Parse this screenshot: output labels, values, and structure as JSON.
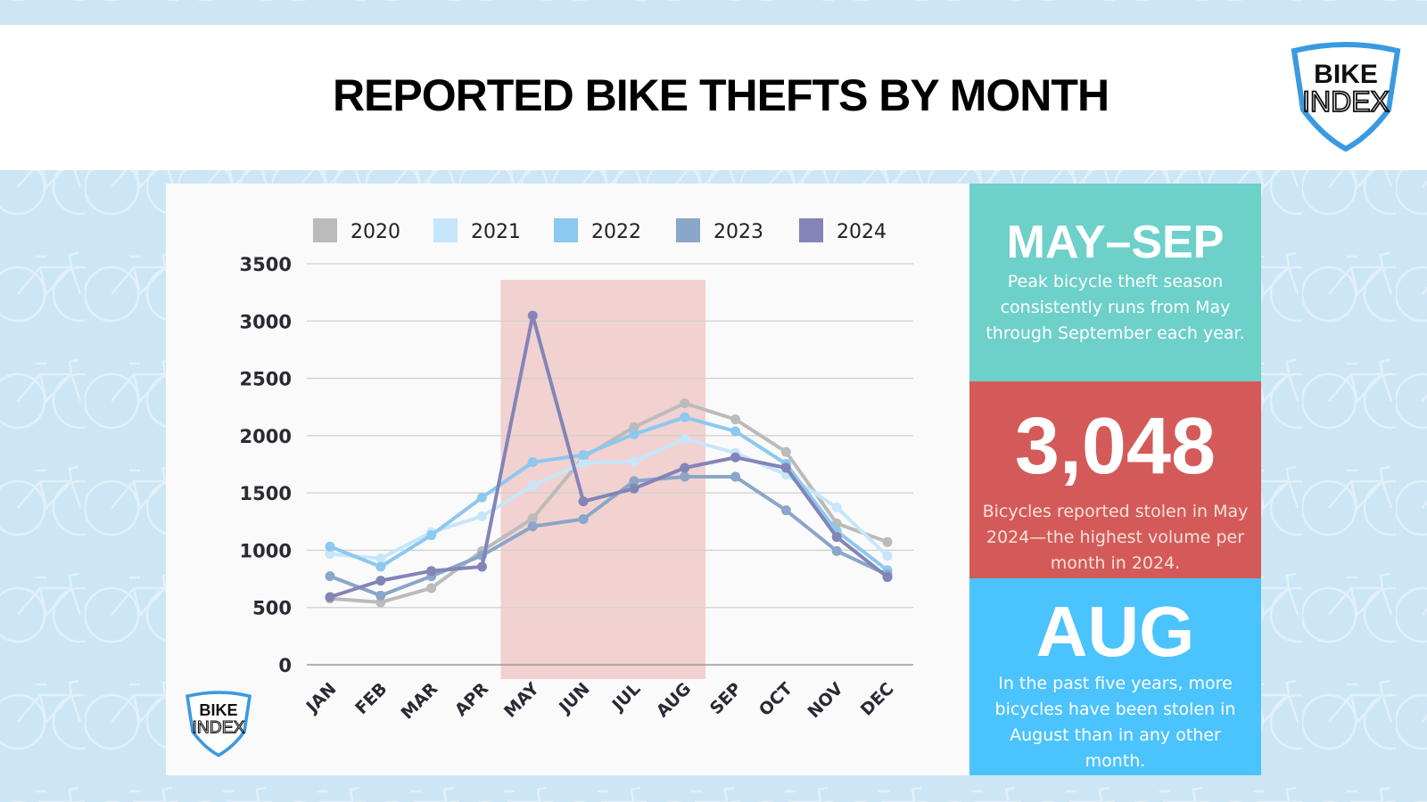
{
  "header": {
    "title": "REPORTED BIKE THEFTS BY MONTH",
    "logo_text": [
      "BIKE",
      "INDEX"
    ]
  },
  "colors": {
    "background": "#cde6f6",
    "highlight": "#f1d2d0",
    "panel_teal": "#6dd0c9",
    "panel_red": "#d45a5a",
    "panel_blue": "#4bc3fc",
    "logo_shield": "#3a9ae0"
  },
  "chart_data": {
    "type": "line",
    "title": "",
    "xlabel": "",
    "ylabel": "",
    "categories": [
      "JAN",
      "FEB",
      "MAR",
      "APR",
      "MAY",
      "JUN",
      "JUL",
      "AUG",
      "SEP",
      "OCT",
      "NOV",
      "DEC"
    ],
    "ylim": [
      0,
      3500
    ],
    "yticks": [
      "0",
      "500",
      "1000",
      "1500",
      "2000",
      "2500",
      "3000",
      "3500"
    ],
    "grid": true,
    "legend_position": "top",
    "highlight_range": [
      "MAY",
      "AUG"
    ],
    "series": [
      {
        "name": "2020",
        "color": "#bbbbbb",
        "values": [
          578,
          545,
          669,
          993,
          1278,
          1810,
          2074,
          2282,
          2142,
          1857,
          1234,
          1071
        ]
      },
      {
        "name": "2021",
        "color": "#c6e6fb",
        "values": [
          967,
          928,
          1156,
          1296,
          1564,
          1763,
          1774,
          1971,
          1849,
          1660,
          1374,
          949
        ]
      },
      {
        "name": "2022",
        "color": "#8cc8ef",
        "values": [
          1032,
          856,
          1131,
          1460,
          1768,
          1831,
          2012,
          2160,
          2038,
          1753,
          1167,
          825
        ]
      },
      {
        "name": "2023",
        "color": "#8aa6c8",
        "values": [
          773,
          604,
          773,
          954,
          1208,
          1271,
          1603,
          1641,
          1641,
          1348,
          993,
          786
        ]
      },
      {
        "name": "2024",
        "color": "#8384b8",
        "values": [
          591,
          734,
          819,
          856,
          3048,
          1426,
          1538,
          1719,
          1810,
          1719,
          1115,
          765
        ]
      }
    ]
  },
  "panels": [
    {
      "headline": "MAY–SEP",
      "text": "Peak bicycle theft season consistently runs from May through September each year."
    },
    {
      "headline": "3,048",
      "text": "Bicycles reported stolen in May 2024—the highest volume per month in 2024."
    },
    {
      "headline": "AUG",
      "text": "In the past five years, more bicycles have been stolen in August than in any other month."
    }
  ]
}
